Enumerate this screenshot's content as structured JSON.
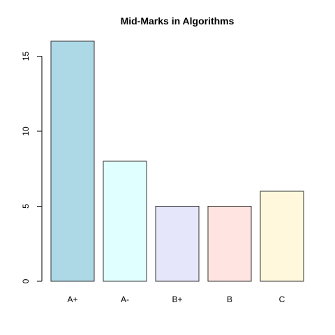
{
  "chart_data": {
    "type": "bar",
    "title": "Mid-Marks in Algorithms",
    "xlabel": "",
    "ylabel": "",
    "categories": [
      "A+",
      "A-",
      "B+",
      "B",
      "C"
    ],
    "values": [
      16,
      8,
      5,
      5,
      6
    ],
    "colors": [
      "#add8e6",
      "#e0ffff",
      "#e6e6fa",
      "#ffe4e1",
      "#fff8dc"
    ],
    "ylim": [
      0,
      16
    ],
    "yticks": [
      0,
      5,
      10,
      15
    ],
    "grid": false,
    "legend": "none"
  }
}
